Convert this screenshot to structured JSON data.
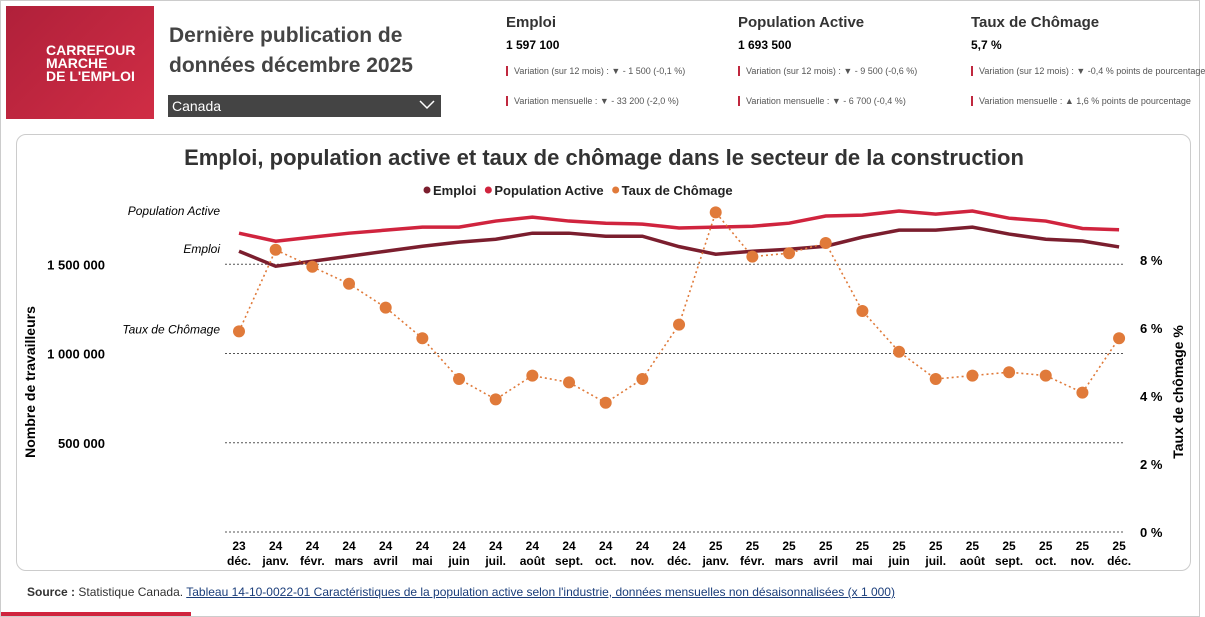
{
  "header": {
    "logo": [
      "CARREFOUR",
      "MARCHE",
      "DE L'EMPLOI"
    ],
    "title": [
      "Dernière publication de",
      "données décembre 2025"
    ],
    "region": "Canada"
  },
  "kpis": [
    {
      "name": "Emploi",
      "value": "1 597 100",
      "lines": [
        "Variation (sur 12 mois) : ▼ - 1 500 (-0,1 %)",
        "Variation mensuelle : ▼ - 33 200 (-2,0 %)"
      ]
    },
    {
      "name": "Population Active",
      "value": "1 693 500",
      "lines": [
        "Variation (sur 12 mois) : ▼ - 9 500 (-0,6 %)",
        "Variation mensuelle : ▼ - 6 700 (-0,4 %)"
      ]
    },
    {
      "name": "Taux de Chômage",
      "value": "5,7 %",
      "lines": [
        "Variation (sur 12 mois) : ▼ -0,4 % points de pourcentage",
        "Variation mensuelle : ▲ 1,6 % points de pourcentage"
      ]
    }
  ],
  "chart_data": {
    "type": "line",
    "title": "Emploi, population active et taux de chômage dans le secteur de la construction",
    "ylabel": "Nombre de travailleurs",
    "y2label": "Taux de chômage %",
    "categories": [
      [
        "23",
        "déc."
      ],
      [
        "24",
        "janv."
      ],
      [
        "24",
        "févr."
      ],
      [
        "24",
        "mars"
      ],
      [
        "24",
        "avril"
      ],
      [
        "24",
        "mai"
      ],
      [
        "24",
        "juin"
      ],
      [
        "24",
        "juil."
      ],
      [
        "24",
        "août"
      ],
      [
        "24",
        "sept."
      ],
      [
        "24",
        "oct."
      ],
      [
        "24",
        "nov."
      ],
      [
        "24",
        "déc."
      ],
      [
        "25",
        "janv."
      ],
      [
        "25",
        "févr."
      ],
      [
        "25",
        "mars"
      ],
      [
        "25",
        "avril"
      ],
      [
        "25",
        "mai"
      ],
      [
        "25",
        "juin"
      ],
      [
        "25",
        "juil."
      ],
      [
        "25",
        "août"
      ],
      [
        "25",
        "sept."
      ],
      [
        "25",
        "oct."
      ],
      [
        "25",
        "nov."
      ],
      [
        "25",
        "déc."
      ]
    ],
    "series": [
      {
        "name": "Emploi",
        "color": "#7b1e2e",
        "axis": "y",
        "values": [
          1573000,
          1489000,
          1517000,
          1545000,
          1573000,
          1601000,
          1624000,
          1640000,
          1674000,
          1674000,
          1657000,
          1657000,
          1598600,
          1556000,
          1573000,
          1584000,
          1601000,
          1652000,
          1691000,
          1691000,
          1708000,
          1669000,
          1640000,
          1630300,
          1597100
        ]
      },
      {
        "name": "Population Active",
        "color": "#d0243e",
        "axis": "y",
        "values": [
          1674000,
          1629000,
          1652000,
          1674000,
          1691000,
          1708000,
          1708000,
          1742000,
          1764000,
          1742000,
          1730000,
          1725000,
          1703000,
          1708000,
          1713000,
          1730000,
          1770000,
          1775000,
          1798000,
          1781000,
          1798000,
          1758000,
          1742000,
          1700200,
          1693500
        ]
      },
      {
        "name": "Taux de Chômage",
        "color": "#e07a3a",
        "axis": "y2",
        "style": "dotted",
        "values": [
          5.9,
          8.3,
          7.8,
          7.3,
          6.6,
          5.7,
          4.5,
          3.9,
          4.6,
          4.4,
          3.8,
          4.5,
          6.1,
          9.4,
          8.1,
          8.2,
          8.5,
          6.5,
          5.3,
          4.5,
          4.6,
          4.7,
          4.6,
          4.1,
          5.7
        ]
      }
    ],
    "ylim": [
      0,
      2000000
    ],
    "yticks": [
      {
        "value": 500000,
        "label": "500 000"
      },
      {
        "value": 1000000,
        "label": "1 000 000"
      },
      {
        "value": 1500000,
        "label": "1 500 000"
      }
    ],
    "y2lim": [
      0,
      10.5
    ],
    "y2ticks": [
      {
        "value": 0,
        "label": "0 %"
      },
      {
        "value": 2,
        "label": "2 %"
      },
      {
        "value": 4,
        "label": "4 %"
      },
      {
        "value": 6,
        "label": "6 %"
      },
      {
        "value": 8,
        "label": "8 %"
      }
    ],
    "grid": true,
    "legend": "top"
  },
  "source": {
    "label": "Source :",
    "text": "Statistique Canada.",
    "link": "Tableau 14-10-0022-01 Caractéristiques de la population active selon l'industrie, données mensuelles non désaisonnalisées (x 1 000)"
  }
}
